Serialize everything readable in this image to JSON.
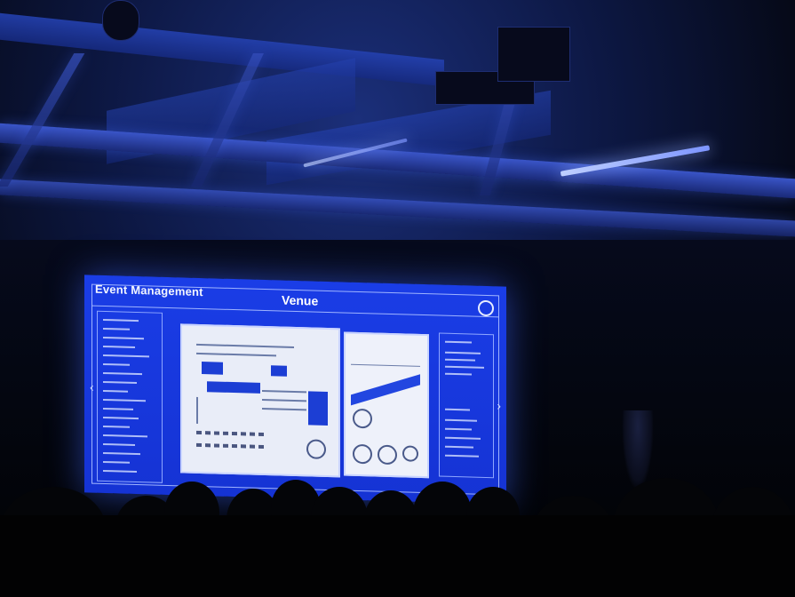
{
  "scene": {
    "description_label": "Auditorium with projected slide",
    "colors": {
      "ambient": "#0d1844",
      "screen": "#1a3de6",
      "ceiling_light": "#bfd0ff"
    }
  },
  "slide": {
    "title": "Event Management",
    "heading": "Venue"
  }
}
